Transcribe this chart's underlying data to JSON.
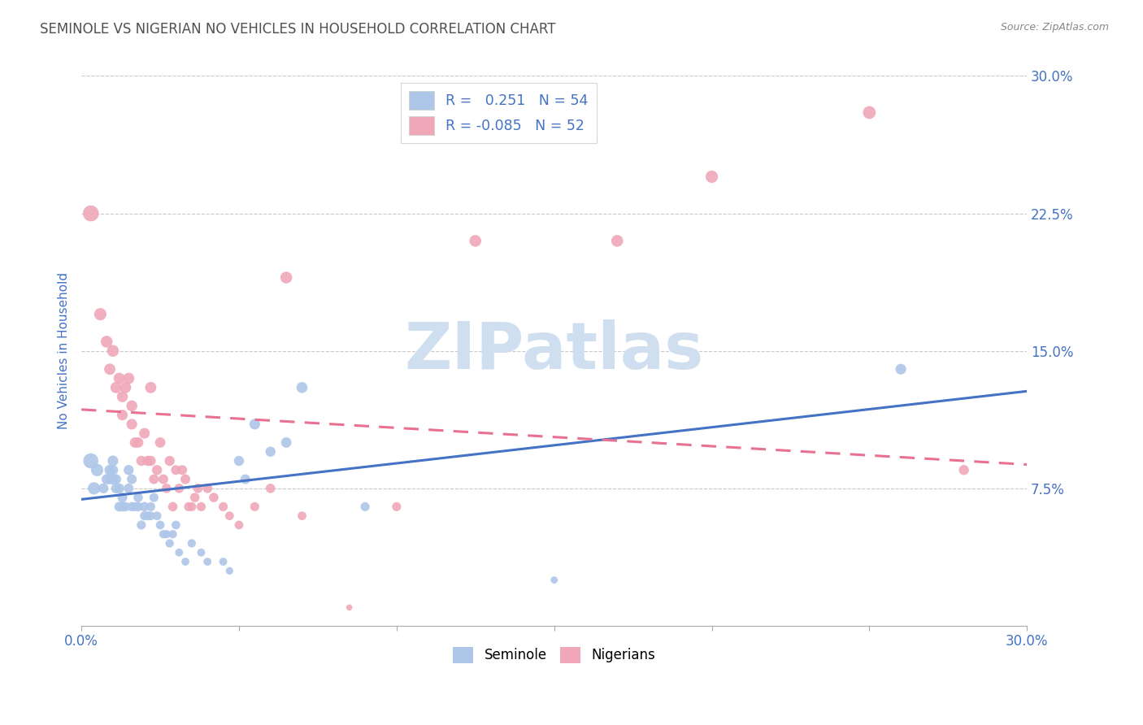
{
  "title": "SEMINOLE VS NIGERIAN NO VEHICLES IN HOUSEHOLD CORRELATION CHART",
  "source": "Source: ZipAtlas.com",
  "ylabel": "No Vehicles in Household",
  "xlim": [
    0.0,
    0.3
  ],
  "ylim": [
    0.0,
    0.3
  ],
  "yticks": [
    0.075,
    0.15,
    0.225,
    0.3
  ],
  "ytick_labels": [
    "7.5%",
    "15.0%",
    "22.5%",
    "30.0%"
  ],
  "seminole_R": 0.251,
  "seminole_N": 54,
  "nigerian_R": -0.085,
  "nigerian_N": 52,
  "seminole_color": "#aec6e8",
  "nigerian_color": "#f0a8b8",
  "seminole_line_color": "#4472c4",
  "nigerian_line_color": "#e87090",
  "background_color": "#ffffff",
  "grid_color": "#c8c8c8",
  "title_color": "#505050",
  "tick_label_color": "#4472c4",
  "watermark_color": "#d0dff0",
  "legend_label_color": "#4472c4",
  "bottom_legend_label_color": "#000000",
  "seminole_line_y0": 0.069,
  "seminole_line_y1": 0.128,
  "nigerian_line_y0": 0.118,
  "nigerian_line_y1": 0.088,
  "seminole_x": [
    0.003,
    0.004,
    0.005,
    0.007,
    0.008,
    0.009,
    0.009,
    0.01,
    0.01,
    0.01,
    0.011,
    0.011,
    0.012,
    0.012,
    0.013,
    0.013,
    0.014,
    0.015,
    0.015,
    0.016,
    0.016,
    0.017,
    0.018,
    0.018,
    0.019,
    0.02,
    0.02,
    0.021,
    0.022,
    0.022,
    0.023,
    0.024,
    0.025,
    0.026,
    0.027,
    0.028,
    0.029,
    0.03,
    0.031,
    0.033,
    0.035,
    0.038,
    0.04,
    0.045,
    0.047,
    0.05,
    0.052,
    0.055,
    0.06,
    0.065,
    0.07,
    0.09,
    0.15,
    0.26
  ],
  "seminole_y": [
    0.09,
    0.075,
    0.085,
    0.075,
    0.08,
    0.085,
    0.08,
    0.09,
    0.085,
    0.08,
    0.075,
    0.08,
    0.075,
    0.065,
    0.07,
    0.065,
    0.065,
    0.085,
    0.075,
    0.08,
    0.065,
    0.065,
    0.07,
    0.065,
    0.055,
    0.065,
    0.06,
    0.06,
    0.065,
    0.06,
    0.07,
    0.06,
    0.055,
    0.05,
    0.05,
    0.045,
    0.05,
    0.055,
    0.04,
    0.035,
    0.045,
    0.04,
    0.035,
    0.035,
    0.03,
    0.09,
    0.08,
    0.11,
    0.095,
    0.1,
    0.13,
    0.065,
    0.025,
    0.14
  ],
  "nigerian_x": [
    0.003,
    0.006,
    0.008,
    0.009,
    0.01,
    0.011,
    0.012,
    0.013,
    0.013,
    0.014,
    0.015,
    0.016,
    0.016,
    0.017,
    0.018,
    0.019,
    0.02,
    0.021,
    0.022,
    0.022,
    0.023,
    0.024,
    0.025,
    0.026,
    0.027,
    0.028,
    0.029,
    0.03,
    0.031,
    0.032,
    0.033,
    0.034,
    0.035,
    0.036,
    0.037,
    0.038,
    0.04,
    0.042,
    0.045,
    0.047,
    0.05,
    0.055,
    0.06,
    0.065,
    0.07,
    0.085,
    0.1,
    0.125,
    0.17,
    0.2,
    0.25,
    0.28
  ],
  "nigerian_y": [
    0.225,
    0.17,
    0.155,
    0.14,
    0.15,
    0.13,
    0.135,
    0.125,
    0.115,
    0.13,
    0.135,
    0.12,
    0.11,
    0.1,
    0.1,
    0.09,
    0.105,
    0.09,
    0.09,
    0.13,
    0.08,
    0.085,
    0.1,
    0.08,
    0.075,
    0.09,
    0.065,
    0.085,
    0.075,
    0.085,
    0.08,
    0.065,
    0.065,
    0.07,
    0.075,
    0.065,
    0.075,
    0.07,
    0.065,
    0.06,
    0.055,
    0.065,
    0.075,
    0.19,
    0.06,
    0.01,
    0.065,
    0.21,
    0.21,
    0.245,
    0.28,
    0.085
  ],
  "seminole_sizes": [
    180,
    120,
    120,
    80,
    80,
    90,
    85,
    90,
    85,
    85,
    80,
    80,
    80,
    75,
    75,
    70,
    70,
    80,
    75,
    75,
    70,
    65,
    70,
    70,
    65,
    70,
    65,
    65,
    65,
    60,
    65,
    60,
    60,
    55,
    55,
    55,
    55,
    60,
    50,
    50,
    55,
    50,
    50,
    50,
    45,
    80,
    75,
    90,
    80,
    85,
    95,
    65,
    40,
    90
  ],
  "nigerian_sizes": [
    200,
    120,
    110,
    100,
    110,
    100,
    100,
    95,
    90,
    100,
    100,
    95,
    90,
    85,
    85,
    80,
    90,
    80,
    80,
    100,
    75,
    80,
    85,
    75,
    70,
    80,
    70,
    75,
    70,
    75,
    75,
    65,
    65,
    70,
    70,
    65,
    70,
    70,
    65,
    60,
    60,
    65,
    70,
    110,
    60,
    30,
    65,
    110,
    110,
    120,
    130,
    80
  ]
}
